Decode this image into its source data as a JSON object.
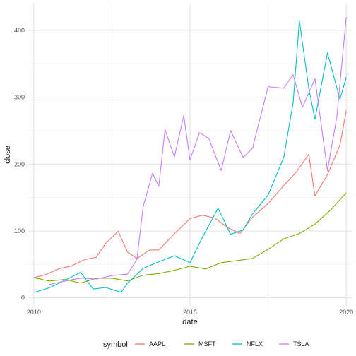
{
  "chart_data": {
    "type": "line",
    "xlabel": "date",
    "ylabel": "close",
    "xlim": [
      2009.8,
      2020.2
    ],
    "ylim": [
      -12,
      440
    ],
    "x_ticks": [
      2010,
      2015,
      2020
    ],
    "x_tick_labels": [
      "2010",
      "2015",
      "2020"
    ],
    "y_ticks": [
      0,
      100,
      200,
      300,
      400
    ],
    "y_tick_labels": [
      "0",
      "100",
      "200",
      "300",
      "400"
    ],
    "grid": true,
    "legend": {
      "title": "symbol",
      "position": "bottom"
    },
    "series": [
      {
        "name": "AAPL",
        "color": "#F8766D",
        "x": [
          2010.0,
          2010.4,
          2010.8,
          2011.2,
          2011.6,
          2012.0,
          2012.3,
          2012.7,
          2013.0,
          2013.3,
          2013.7,
          2014.0,
          2014.5,
          2015.0,
          2015.4,
          2015.8,
          2016.2,
          2016.6,
          2017.0,
          2017.5,
          2018.0,
          2018.4,
          2018.8,
          2019.0,
          2019.4,
          2019.8,
          2020.0
        ],
        "y": [
          30,
          35,
          42,
          50,
          55,
          60,
          85,
          95,
          70,
          60,
          68,
          75,
          95,
          115,
          130,
          115,
          105,
          100,
          115,
          145,
          170,
          180,
          225,
          150,
          180,
          240,
          280
        ]
      },
      {
        "name": "MSFT",
        "color": "#7CAE00",
        "x": [
          2010.0,
          2010.5,
          2011.0,
          2011.5,
          2012.0,
          2012.5,
          2013.0,
          2013.5,
          2014.0,
          2014.5,
          2015.0,
          2015.5,
          2016.0,
          2016.5,
          2017.0,
          2017.5,
          2018.0,
          2018.5,
          2019.0,
          2019.5,
          2020.0
        ],
        "y": [
          30,
          25,
          26,
          24,
          28,
          29,
          27,
          32,
          37,
          42,
          45,
          45,
          52,
          54,
          62,
          70,
          88,
          100,
          105,
          135,
          157
        ]
      },
      {
        "name": "NFLX",
        "color": "#00BFC4",
        "x": [
          2010.0,
          2010.5,
          2011.0,
          2011.5,
          2011.9,
          2012.3,
          2012.8,
          2013.0,
          2013.5,
          2014.0,
          2014.5,
          2015.0,
          2015.4,
          2015.9,
          2016.3,
          2016.7,
          2017.0,
          2017.5,
          2018.0,
          2018.3,
          2018.5,
          2018.8,
          2019.0,
          2019.4,
          2019.8,
          2020.0
        ],
        "y": [
          8,
          15,
          25,
          40,
          12,
          15,
          10,
          20,
          45,
          55,
          60,
          55,
          90,
          130,
          100,
          98,
          125,
          160,
          200,
          300,
          420,
          300,
          280,
          360,
          290,
          330
        ]
      },
      {
        "name": "TSLA",
        "color": "#C77CFF",
        "x": [
          2010.5,
          2011.0,
          2011.5,
          2012.0,
          2012.5,
          2013.0,
          2013.3,
          2013.5,
          2013.8,
          2014.0,
          2014.2,
          2014.5,
          2014.8,
          2015.0,
          2015.3,
          2015.6,
          2016.0,
          2016.3,
          2016.7,
          2017.0,
          2017.5,
          2018.0,
          2018.3,
          2018.6,
          2019.0,
          2019.4,
          2019.7,
          2020.0
        ],
        "y": [
          20,
          25,
          28,
          30,
          32,
          35,
          60,
          130,
          190,
          170,
          240,
          220,
          270,
          200,
          260,
          230,
          190,
          260,
          200,
          230,
          320,
          300,
          350,
          280,
          320,
          200,
          260,
          420
        ]
      }
    ]
  }
}
